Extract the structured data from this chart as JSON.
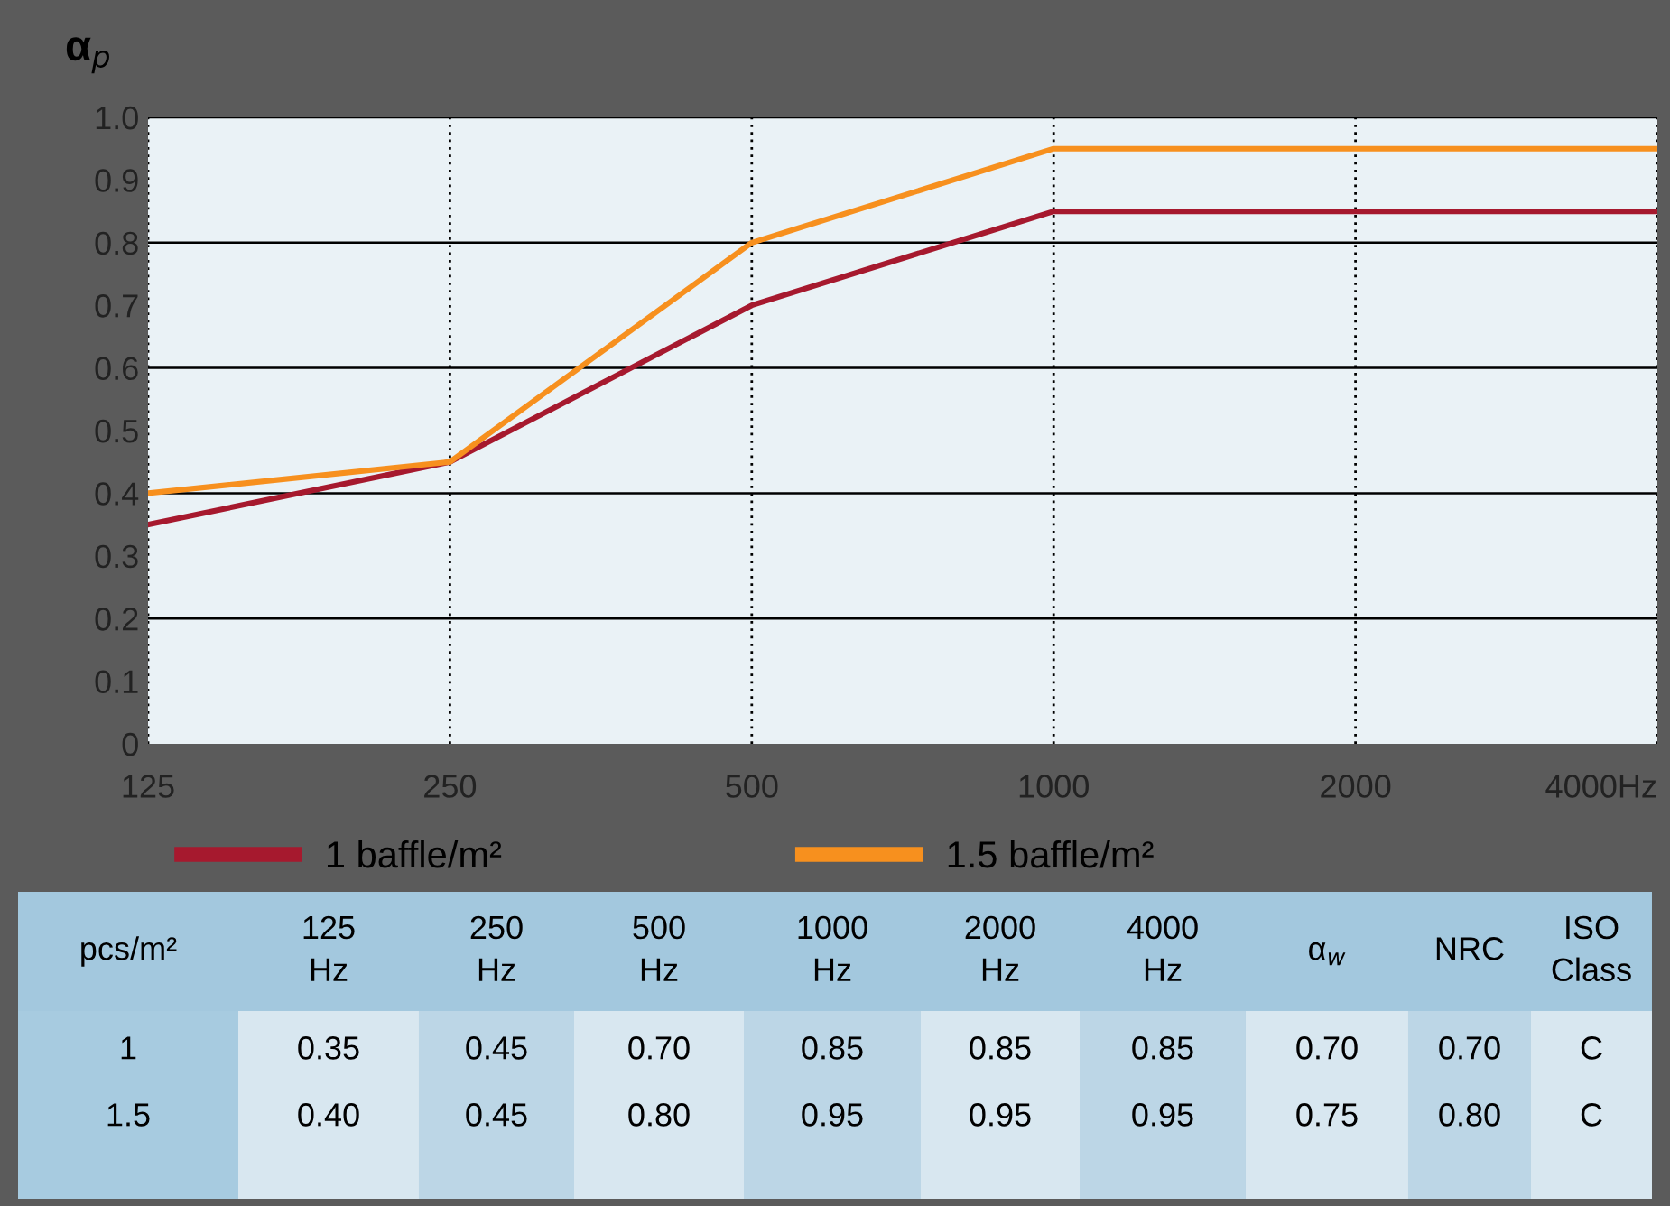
{
  "chart_data": {
    "type": "line",
    "ylabel": "α$_{p}$",
    "categories": [
      "125",
      "250",
      "500",
      "1000",
      "2000",
      "4000Hz"
    ],
    "series": [
      {
        "name": "1 baffle/m²",
        "color": "#a6192e",
        "values": [
          0.35,
          0.45,
          0.7,
          0.85,
          0.85,
          0.85
        ]
      },
      {
        "name": "1.5 baffle/m²",
        "color": "#f7901e",
        "values": [
          0.4,
          0.45,
          0.8,
          0.95,
          0.95,
          0.95
        ]
      }
    ],
    "ylim": [
      0,
      1.0
    ],
    "yticks": [
      {
        "value": 0,
        "label": "0"
      },
      0.1,
      0.2,
      0.3,
      0.4,
      0.5,
      0.6,
      0.7,
      0.8,
      0.9,
      {
        "value": 1.0,
        "label": "1.0"
      }
    ],
    "grid": true,
    "legend": "bottom",
    "marker": "none",
    "line_style": "solid",
    "annotations": [
      "pcs/m²",
      "125\nHz",
      "250\nHz",
      "500\nHz",
      "1000\nHz",
      "2000\nHz",
      "4000\nHz",
      "α$_{w}$",
      "NRC",
      "ISO\nClass",
      "1",
      "0.35",
      "0.45",
      "0.70",
      "0.85",
      "0.85",
      "0.85",
      "0.70",
      "0.70",
      "C",
      "1.5",
      "0.40",
      "0.45",
      "0.80",
      "0.95",
      "0.95",
      "0.95",
      "0.75",
      "0.80",
      "C"
    ]
  }
}
